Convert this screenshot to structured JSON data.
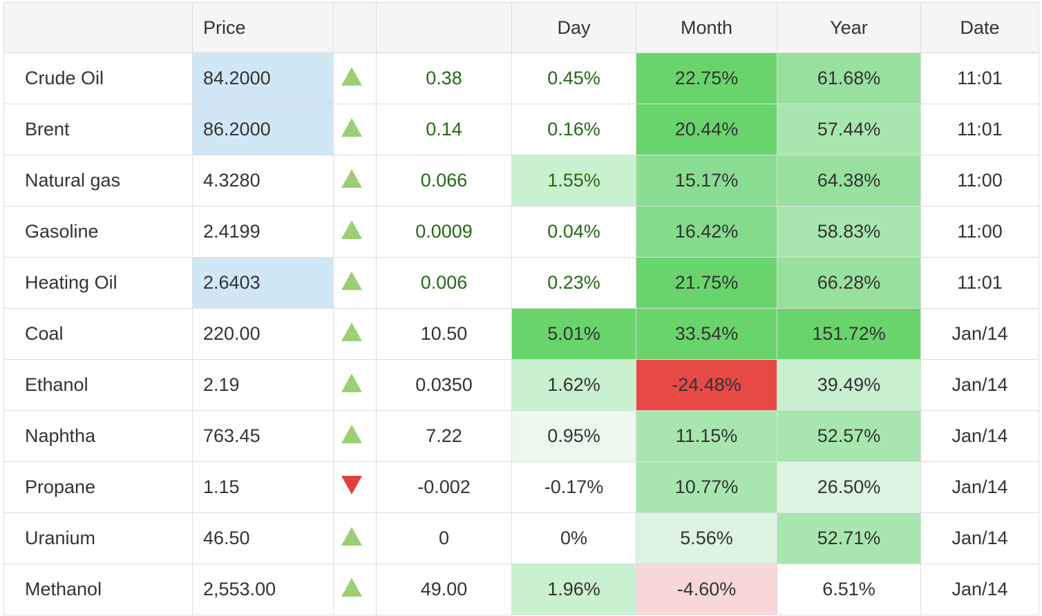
{
  "headers": [
    "",
    "Price",
    "",
    "",
    "Day",
    "Month",
    "Year",
    "Date"
  ],
  "rows": [
    {
      "name": "Crude Oil",
      "price": "84.2000",
      "direction": "up",
      "change": "0.38",
      "day": "0.45%",
      "month": "22.75%",
      "year": "61.68%",
      "date": "11:01",
      "price_highlight": true,
      "change_color": "#226b12",
      "day_color": "#226b12",
      "day_bg": "#ffffff",
      "month_bg": "#6ad46c",
      "year_bg": "#98e09d"
    },
    {
      "name": "Brent",
      "price": "86.2000",
      "direction": "up",
      "change": "0.14",
      "day": "0.16%",
      "month": "20.44%",
      "year": "57.44%",
      "date": "11:01",
      "price_highlight": true,
      "change_color": "#226b12",
      "day_color": "#226b12",
      "day_bg": "#ffffff",
      "month_bg": "#6ad46c",
      "year_bg": "#a8e6b0"
    },
    {
      "name": "Natural gas",
      "price": "4.3280",
      "direction": "up",
      "change": "0.066",
      "day": "1.55%",
      "month": "15.17%",
      "year": "64.38%",
      "date": "11:00",
      "price_highlight": false,
      "change_color": "#226b12",
      "day_color": "#226b12",
      "day_bg": "#c9f0cf",
      "month_bg": "#8adc92",
      "year_bg": "#98e09d"
    },
    {
      "name": "Gasoline",
      "price": "2.4199",
      "direction": "up",
      "change": "0.0009",
      "day": "0.04%",
      "month": "16.42%",
      "year": "58.83%",
      "date": "11:00",
      "price_highlight": false,
      "change_color": "#226b12",
      "day_color": "#226b12",
      "day_bg": "#ffffff",
      "month_bg": "#83db8b",
      "year_bg": "#a8e6b0"
    },
    {
      "name": "Heating Oil",
      "price": "2.6403",
      "direction": "up",
      "change": "0.006",
      "day": "0.23%",
      "month": "21.75%",
      "year": "66.28%",
      "date": "11:01",
      "price_highlight": true,
      "change_color": "#226b12",
      "day_color": "#226b12",
      "day_bg": "#ffffff",
      "month_bg": "#6ad46c",
      "year_bg": "#98e09d"
    },
    {
      "name": "Coal",
      "price": "220.00",
      "direction": "up",
      "change": "10.50",
      "day": "5.01%",
      "month": "33.54%",
      "year": "151.72%",
      "date": "Jan/14",
      "price_highlight": false,
      "change_color": "#333333",
      "day_color": "#333333",
      "day_bg": "#6ad46c",
      "month_bg": "#6ad46c",
      "year_bg": "#6ad46c"
    },
    {
      "name": "Ethanol",
      "price": "2.19",
      "direction": "up",
      "change": "0.0350",
      "day": "1.62%",
      "month": "-24.48%",
      "year": "39.49%",
      "date": "Jan/14",
      "price_highlight": false,
      "change_color": "#333333",
      "day_color": "#333333",
      "day_bg": "#c9f0cf",
      "month_bg": "#e74a45",
      "year_bg": "#c9f0cf"
    },
    {
      "name": "Naphtha",
      "price": "763.45",
      "direction": "up",
      "change": "7.22",
      "day": "0.95%",
      "month": "11.15%",
      "year": "52.57%",
      "date": "Jan/14",
      "price_highlight": false,
      "change_color": "#333333",
      "day_color": "#333333",
      "day_bg": "#ecf8ed",
      "month_bg": "#a8e6b0",
      "year_bg": "#a8e6b0"
    },
    {
      "name": "Propane",
      "price": "1.15",
      "direction": "down",
      "change": "-0.002",
      "day": "-0.17%",
      "month": "10.77%",
      "year": "26.50%",
      "date": "Jan/14",
      "price_highlight": false,
      "change_color": "#333333",
      "day_color": "#333333",
      "day_bg": "#ffffff",
      "month_bg": "#a8e6b0",
      "year_bg": "#dcf4e0"
    },
    {
      "name": "Uranium",
      "price": "46.50",
      "direction": "up",
      "change": "0",
      "day": "0%",
      "month": "5.56%",
      "year": "52.71%",
      "date": "Jan/14",
      "price_highlight": false,
      "change_color": "#333333",
      "day_color": "#333333",
      "day_bg": "#ffffff",
      "month_bg": "#dcf4e0",
      "year_bg": "#a8e6b0"
    },
    {
      "name": "Methanol",
      "price": "2,553.00",
      "direction": "up",
      "change": "49.00",
      "day": "1.96%",
      "month": "-4.60%",
      "year": "6.51%",
      "date": "Jan/14",
      "price_highlight": false,
      "change_color": "#333333",
      "day_color": "#333333",
      "day_bg": "#c9f0cf",
      "month_bg": "#f8d7d9",
      "year_bg": "#ffffff"
    }
  ]
}
